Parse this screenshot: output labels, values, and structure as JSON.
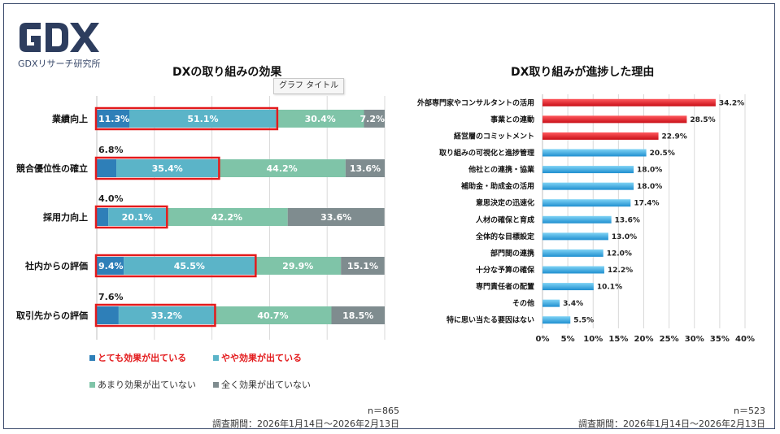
{
  "brand": {
    "logo_text": "GDX",
    "sub": "GDXリサーチ研究所",
    "navy": "#2d3d5e"
  },
  "tooltip": "グラフ タイトル",
  "colors": {
    "c1": "#2e7fb8",
    "c2": "#5bb4c8",
    "c3": "#7fc4a8",
    "c4": "#7f8c8f",
    "red": "#e31a1c",
    "blue": "#35a8e0",
    "redbar": "#e8232a"
  },
  "left_footer": {
    "n": "n＝865",
    "period": "調査期間：2026年1月14日〜2026年2月13日"
  },
  "right_footer": {
    "n": "n＝523",
    "period": "調査期間：2026年1月14日〜2026年2月13日"
  },
  "legend": [
    "とても効果が出ている",
    "やや効果が出ている",
    "あまり効果が出ていない",
    "全く効果が出ていない"
  ],
  "chart_data": [
    {
      "type": "bar",
      "orientation": "horizontal",
      "stacked": true,
      "title": "DXの取り組みの効果",
      "categories": [
        "業績向上",
        "競合優位性の確立",
        "採用力向上",
        "社内からの評価",
        "取引先からの評価"
      ],
      "series": [
        {
          "name": "とても効果が出ている",
          "values": [
            11.3,
            6.8,
            4.0,
            9.4,
            7.6
          ]
        },
        {
          "name": "やや効果が出ている",
          "values": [
            51.1,
            35.4,
            20.1,
            45.5,
            33.2
          ]
        },
        {
          "name": "あまり効果が出ていない",
          "values": [
            30.4,
            44.2,
            42.2,
            29.9,
            40.7
          ]
        },
        {
          "name": "全く効果が出ていない",
          "values": [
            7.2,
            13.6,
            33.6,
            15.1,
            18.5
          ]
        }
      ],
      "data_labels": [
        [
          "11.3%",
          "51.1%",
          "30.4%",
          "7.2%"
        ],
        [
          "6.8%",
          "35.4%",
          "44.2%",
          "13.6%"
        ],
        [
          "4.0%",
          "20.1%",
          "42.2%",
          "33.6%"
        ],
        [
          "9.4%",
          "45.5%",
          "29.9%",
          "15.1%"
        ],
        [
          "7.6%",
          "33.2%",
          "40.7%",
          "18.5%"
        ]
      ],
      "xlim": [
        0,
        100
      ],
      "grid": true,
      "highlight": "red outline around とても＋やや効果が出ている"
    },
    {
      "type": "bar",
      "orientation": "horizontal",
      "title": "DX取り組みが進捗した理由",
      "categories": [
        "外部専門家やコンサルタントの活用",
        "事業との連動",
        "経営層のコミットメント",
        "取り組みの可視化と進捗管理",
        "他社との連携・協業",
        "補助金・助成金の活用",
        "意思決定の迅速化",
        "人材の確保と育成",
        "全体的な目標設定",
        "部門間の連携",
        "十分な予算の確保",
        "専門責任者の配置",
        "その他",
        "特に思い当たる要因はない"
      ],
      "values": [
        34.2,
        28.5,
        22.9,
        20.5,
        18.0,
        18.0,
        17.4,
        13.6,
        13.0,
        12.0,
        12.2,
        10.1,
        3.4,
        5.5
      ],
      "data_labels": [
        "34.2%",
        "28.5%",
        "22.9%",
        "20.5%",
        "18.0%",
        "18.0%",
        "17.4%",
        "13.6%",
        "13.0%",
        "12.0%",
        "12.2%",
        "10.1%",
        "3.4%",
        "5.5%"
      ],
      "highlight_top": 3,
      "xlim": [
        0,
        40
      ],
      "xticks": [
        "0%",
        "5%",
        "10%",
        "15%",
        "20%",
        "25%",
        "30%",
        "35%",
        "40%"
      ],
      "grid": true
    }
  ]
}
